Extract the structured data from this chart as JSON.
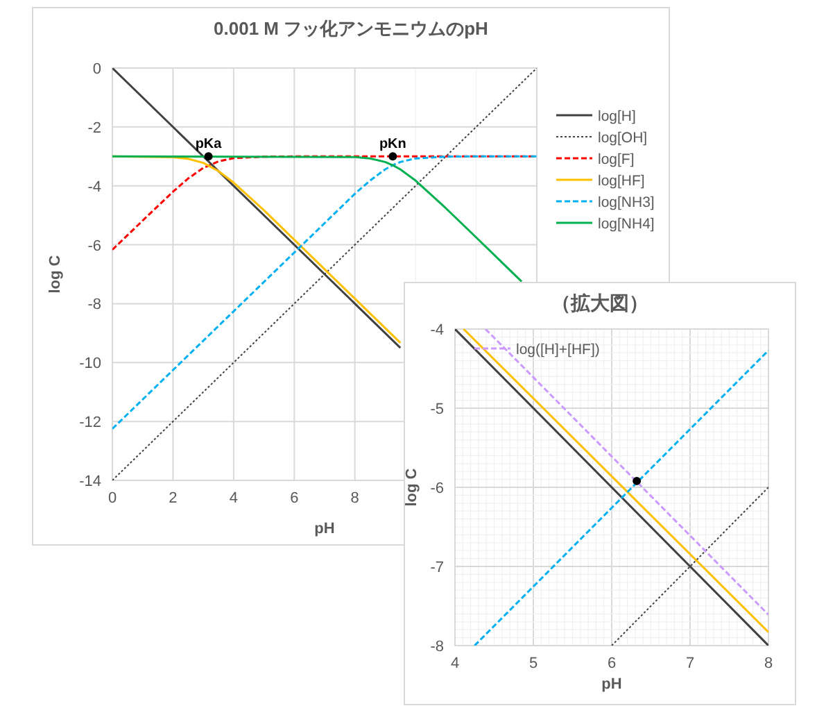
{
  "chart_data": [
    {
      "type": "line",
      "title": "0.001 M フッ化アンモニウムのpH",
      "xlabel": "pH",
      "ylabel": "log C",
      "xlim": [
        0,
        14
      ],
      "ylim": [
        -14,
        0
      ],
      "xticks": [
        0,
        2,
        4,
        6,
        8,
        {
          "value": 10,
          "label": null
        },
        {
          "value": 12,
          "label": null
        },
        {
          "value": 14,
          "label": null
        }
      ],
      "yticks": [
        0,
        -2,
        -4,
        -6,
        -8,
        -10,
        -12,
        -14
      ],
      "grid": true,
      "legend": "right",
      "series": [
        {
          "name": "log[H]",
          "color": "#404040",
          "line_style": "solid",
          "x": [
            0,
            9.5
          ],
          "values": [
            0,
            -9.5
          ]
        },
        {
          "name": "log[OH]",
          "color": "#404040",
          "line_style": "dotted",
          "x": [
            0,
            14
          ],
          "values": [
            -14,
            0
          ]
        },
        {
          "name": "log[F]",
          "color": "#ff0000",
          "line_style": "dashed",
          "x": [
            0,
            1,
            2,
            2.5,
            3,
            3.5,
            4,
            5,
            6,
            14
          ],
          "values": [
            -6.17,
            -5.18,
            -4.2,
            -3.75,
            -3.39,
            -3.17,
            -3.06,
            -3.01,
            -3,
            -3
          ]
        },
        {
          "name": "log[HF]",
          "color": "#ffc000",
          "line_style": "solid",
          "x": [
            0,
            2,
            2.5,
            3,
            3.5,
            4,
            5,
            6,
            9.5
          ],
          "values": [
            -3,
            -3.03,
            -3.08,
            -3.22,
            -3.5,
            -3.89,
            -4.83,
            -5.83,
            -9.33
          ]
        },
        {
          "name": "log[NH3]",
          "color": "#00b0f0",
          "line_style": "dashed",
          "x": [
            0,
            8,
            8.5,
            9,
            9.25,
            9.5,
            10,
            11,
            12,
            14
          ],
          "values": [
            -12.25,
            -4.27,
            -3.82,
            -3.44,
            -3.3,
            -3.19,
            -3.07,
            -3.01,
            -3,
            -3
          ]
        },
        {
          "name": "log[NH4]",
          "color": "#00b050",
          "line_style": "solid",
          "x": [
            0,
            8,
            8.5,
            9,
            9.25,
            9.5,
            10,
            11,
            12,
            13,
            13.5
          ],
          "values": [
            -3,
            -3.02,
            -3.07,
            -3.19,
            -3.3,
            -3.44,
            -3.82,
            -4.76,
            -5.75,
            -6.75,
            -7.25
          ]
        },
        {
          "type": "scatter",
          "color": "#000000",
          "x": [
            3.17,
            9.25
          ],
          "values": [
            -3,
            -3
          ]
        }
      ],
      "annotations": [
        {
          "text": "pKa",
          "x": 3.17,
          "y": -3
        },
        {
          "text": "pKn",
          "x": 9.25,
          "y": -3
        }
      ]
    },
    {
      "type": "line",
      "title": "（拡大図）",
      "xlabel": "pH",
      "ylabel": "log C",
      "xlim": [
        4,
        8
      ],
      "ylim": [
        -8,
        -4
      ],
      "grid": true,
      "legend": "top left",
      "xticks": [
        4,
        {
          "value": 4.1,
          "label": null
        },
        {
          "value": 4.2,
          "label": null
        },
        {
          "value": 4.3,
          "label": null
        },
        {
          "value": 4.4,
          "label": null
        },
        {
          "value": 4.5,
          "label": null
        },
        {
          "value": 4.6,
          "label": null
        },
        {
          "value": 4.7,
          "label": null
        },
        {
          "value": 4.8,
          "label": null
        },
        {
          "value": 4.9,
          "label": null
        },
        5,
        {
          "value": 5.1,
          "label": null
        },
        {
          "value": 5.2,
          "label": null
        },
        {
          "value": 5.3,
          "label": null
        },
        {
          "value": 5.4,
          "label": null
        },
        {
          "value": 5.5,
          "label": null
        },
        {
          "value": 5.6,
          "label": null
        },
        {
          "value": 5.7,
          "label": null
        },
        {
          "value": 5.8,
          "label": null
        },
        {
          "value": 5.9,
          "label": null
        },
        6,
        {
          "value": 6.1,
          "label": null
        },
        {
          "value": 6.2,
          "label": null
        },
        {
          "value": 6.3,
          "label": null
        },
        {
          "value": 6.4,
          "label": null
        },
        {
          "value": 6.5,
          "label": null
        },
        {
          "value": 6.6,
          "label": null
        },
        {
          "value": 6.7,
          "label": null
        },
        {
          "value": 6.8,
          "label": null
        },
        {
          "value": 6.9,
          "label": null
        },
        7,
        {
          "value": 7.1,
          "label": null
        },
        {
          "value": 7.2,
          "label": null
        },
        {
          "value": 7.3,
          "label": null
        },
        {
          "value": 7.4,
          "label": null
        },
        {
          "value": 7.5,
          "label": null
        },
        {
          "value": 7.6,
          "label": null
        },
        {
          "value": 7.7,
          "label": null
        },
        {
          "value": 7.8,
          "label": null
        },
        {
          "value": 7.9,
          "label": null
        },
        8
      ],
      "yticks": [
        -4,
        {
          "value": -4.1,
          "label": null
        },
        {
          "value": -4.2,
          "label": null
        },
        {
          "value": -4.3,
          "label": null
        },
        {
          "value": -4.4,
          "label": null
        },
        {
          "value": -4.5,
          "label": null
        },
        {
          "value": -4.6,
          "label": null
        },
        {
          "value": -4.7,
          "label": null
        },
        {
          "value": -4.8,
          "label": null
        },
        {
          "value": -4.9,
          "label": null
        },
        -5,
        {
          "value": -5.1,
          "label": null
        },
        {
          "value": -5.2,
          "label": null
        },
        {
          "value": -5.3,
          "label": null
        },
        {
          "value": -5.4,
          "label": null
        },
        {
          "value": -5.5,
          "label": null
        },
        {
          "value": -5.6,
          "label": null
        },
        {
          "value": -5.7,
          "label": null
        },
        {
          "value": -5.8,
          "label": null
        },
        {
          "value": -5.9,
          "label": null
        },
        -6,
        {
          "value": -6.1,
          "label": null
        },
        {
          "value": -6.2,
          "label": null
        },
        {
          "value": -6.3,
          "label": null
        },
        {
          "value": -6.4,
          "label": null
        },
        {
          "value": -6.5,
          "label": null
        },
        {
          "value": -6.6,
          "label": null
        },
        {
          "value": -6.7,
          "label": null
        },
        {
          "value": -6.8,
          "label": null
        },
        {
          "value": -6.9,
          "label": null
        },
        -7,
        {
          "value": -7.1,
          "label": null
        },
        {
          "value": -7.2,
          "label": null
        },
        {
          "value": -7.3,
          "label": null
        },
        {
          "value": -7.4,
          "label": null
        },
        {
          "value": -7.5,
          "label": null
        },
        {
          "value": -7.6,
          "label": null
        },
        {
          "value": -7.7,
          "label": null
        },
        {
          "value": -7.8,
          "label": null
        },
        {
          "value": -7.9,
          "label": null
        },
        -8
      ],
      "series": [
        {
          "color": "#404040",
          "line_style": "solid",
          "x": [
            4,
            8
          ],
          "values": [
            -4,
            -8
          ]
        },
        {
          "color": "#404040",
          "line_style": "dotted",
          "x": [
            6,
            8
          ],
          "values": [
            -8,
            -6
          ]
        },
        {
          "color": "#ffc000",
          "line_style": "solid",
          "x": [
            4.11,
            8
          ],
          "values": [
            -4,
            -7.83
          ]
        },
        {
          "name": "log([H]+[HF])",
          "color": "#cc99ff",
          "line_style": "dashed",
          "x": [
            4.39,
            8
          ],
          "values": [
            -4,
            -7.61
          ]
        },
        {
          "color": "#00b0f0",
          "line_style": "dashed",
          "x": [
            4.25,
            8
          ],
          "values": [
            -8,
            -4.27
          ]
        },
        {
          "type": "scatter",
          "color": "#000000",
          "x": [
            6.32
          ],
          "values": [
            -5.92
          ]
        }
      ]
    }
  ]
}
